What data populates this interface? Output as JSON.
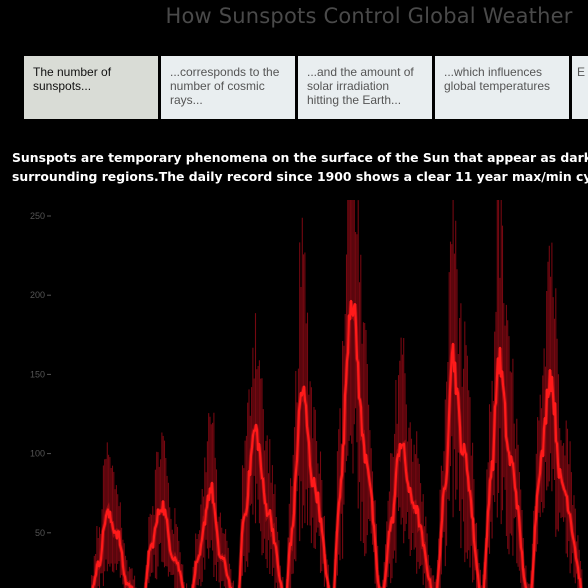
{
  "page": {
    "title": "How Sunspots Control Global Weather"
  },
  "tabs": [
    {
      "label": "The number of sunspots...",
      "active": true
    },
    {
      "label": "...corresponds to the number of cosmic rays...",
      "active": false
    },
    {
      "label": "...and the amount of solar irradiation hitting the Earth...",
      "active": false
    },
    {
      "label": "...which influences global temperatures",
      "active": false
    },
    {
      "label": "E s y",
      "active": false
    }
  ],
  "description": {
    "line1": "Sunspots are temporary phenomena on the surface of the Sun that appear as dark spots c",
    "line2": "surrounding regions.The daily record since 1900 shows a clear 11 year max/min cycle..."
  },
  "colors": {
    "background": "#000000",
    "smoothed_line": "#ff1a1a",
    "daily_record": "#8a0a14",
    "axis_text": "#555555"
  },
  "chart_data": {
    "type": "line",
    "title": "",
    "xlabel": "",
    "ylabel": "",
    "ylim": [
      0,
      260
    ],
    "yticks": [
      50,
      100,
      150,
      200,
      250
    ],
    "grid": false,
    "legend": "none",
    "series": [
      {
        "style": "smoothed",
        "x": [
          1900,
          1901.7,
          1904,
          1905.7,
          1908,
          1910,
          1913.5,
          1915,
          1917.5,
          1920,
          1923.5,
          1925,
          1928,
          1930,
          1933.7,
          1935,
          1937.5,
          1940,
          1944,
          1945,
          1947.5,
          1950,
          1954,
          1955.5,
          1958,
          1961,
          1964.5,
          1966.5,
          1968.5,
          1971,
          1976,
          1978,
          1979.5,
          1982,
          1986,
          1988,
          1989.5,
          1992,
          1996,
          1998.5,
          2000.5,
          2003,
          2008.5,
          2010.5,
          2012
        ],
        "y": [
          5,
          3,
          30,
          62,
          50,
          18,
          3,
          40,
          68,
          35,
          5,
          30,
          78,
          35,
          4,
          60,
          115,
          65,
          7,
          45,
          140,
          80,
          5,
          75,
          200,
          100,
          8,
          55,
          108,
          70,
          10,
          75,
          165,
          100,
          10,
          90,
          160,
          95,
          7,
          95,
          150,
          80,
          3,
          40,
          60
        ]
      }
    ]
  }
}
